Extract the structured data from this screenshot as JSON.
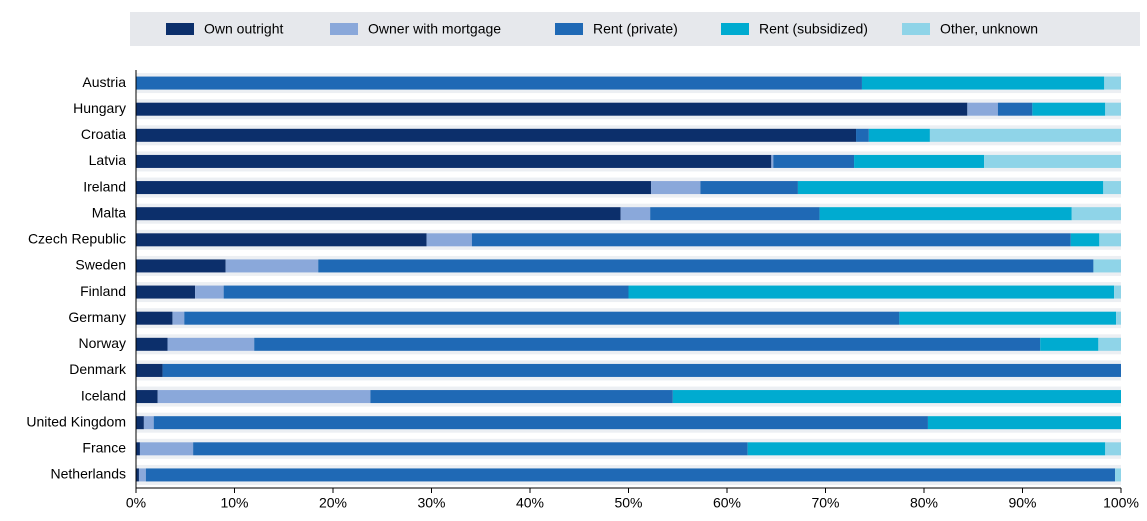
{
  "chart_data": {
    "type": "stacked-barh",
    "categories": [
      "Austria",
      "Hungary",
      "Croatia",
      "Latvia",
      "Ireland",
      "Malta",
      "Czech Republic",
      "Sweden",
      "Finland",
      "Germany",
      "Norway",
      "Denmark",
      "Iceland",
      "United Kingdom",
      "France",
      "Netherlands"
    ],
    "series": [
      {
        "name": "Own outright",
        "color": "#0c2f6b",
        "values": [
          0,
          84.4,
          73.1,
          64.5,
          52.3,
          49.2,
          29.5,
          9.1,
          6.0,
          3.7,
          3.2,
          2.7,
          2.2,
          0.8,
          0.4,
          0.3
        ]
      },
      {
        "name": "Owner with mortgage",
        "color": "#8aa8da",
        "values": [
          0,
          3.1,
          0,
          0.2,
          5.0,
          3.0,
          4.6,
          9.4,
          2.9,
          1.2,
          8.8,
          0,
          21.6,
          1.0,
          5.4,
          0.7
        ]
      },
      {
        "name": "Rent (private)",
        "color": "#1f69b5",
        "values": [
          73.7,
          3.5,
          1.3,
          8.2,
          9.9,
          17.2,
          60.8,
          78.7,
          41.1,
          72.6,
          79.8,
          97.3,
          30.7,
          78.6,
          56.3,
          98.4
        ]
      },
      {
        "name": "Rent (subsidized)",
        "color": "#00abd0",
        "values": [
          24.6,
          7.4,
          6.2,
          13.2,
          31.0,
          25.6,
          2.9,
          0,
          49.3,
          22.0,
          5.9,
          0,
          45.5,
          19.6,
          36.3,
          0
        ]
      },
      {
        "name": "Other, unknown",
        "color": "#8fd4e8",
        "values": [
          1.7,
          1.6,
          19.4,
          13.9,
          1.8,
          5.0,
          2.2,
          2.8,
          0.7,
          0.5,
          2.3,
          0,
          0,
          0,
          1.6,
          0.6
        ]
      }
    ],
    "xlim": [
      0,
      100
    ],
    "xticks": [
      {
        "value": 0,
        "label": "0%"
      },
      {
        "value": 10,
        "label": "10%"
      },
      {
        "value": 20,
        "label": "20%"
      },
      {
        "value": 30,
        "label": "30%"
      },
      {
        "value": 40,
        "label": "40%"
      },
      {
        "value": 50,
        "label": "50%"
      },
      {
        "value": 60,
        "label": "60%"
      },
      {
        "value": 70,
        "label": "70%"
      },
      {
        "value": 80,
        "label": "80%"
      },
      {
        "value": 90,
        "label": "90%"
      },
      {
        "value": 100,
        "label": "100%"
      }
    ]
  }
}
